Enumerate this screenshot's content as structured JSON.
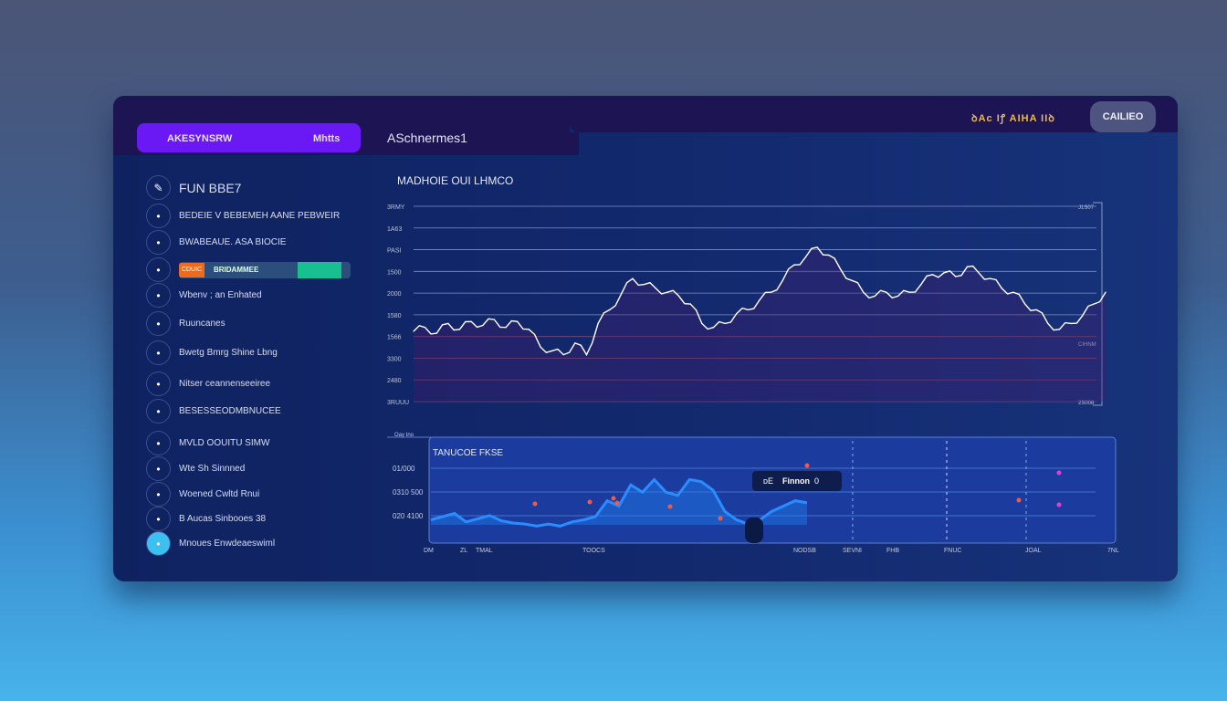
{
  "header": {
    "active_tab": {
      "label": "AKESYNSRW",
      "badge": "Mhtts"
    },
    "tab2": "ASchnermes1",
    "status": "ꝺAc Iꝭ AIHA IIꝺ",
    "button": "CAILIEO"
  },
  "sidebar": {
    "title": "FUN BBE7",
    "items": [
      {
        "label": "BEDEIE V BEBEMEH AANE PEBWEIR",
        "icon": "brush-icon"
      },
      {
        "label": "BWABEAUE. ASA BIOCIE",
        "icon": "drop-icon"
      },
      {
        "label": "BRIDAMMEE",
        "icon": "pin-icon",
        "progress_badge": "CDUIC",
        "progress": 0.95
      },
      {
        "label": "Wbenv ; an Enhated",
        "icon": "coin-icon"
      },
      {
        "label": "Ruuncanes",
        "icon": "globe-icon"
      },
      {
        "label": "Bwetg Bmrg Shine Lbng",
        "icon": "rocket-icon"
      },
      {
        "label": "Nitser ceannenseeiree",
        "icon": "gauge-icon"
      },
      {
        "label": "BESESSEODMBNUCEE",
        "icon": "plane-icon"
      },
      {
        "label": "MVLD OOUITU SIMW",
        "icon": "anchor-icon"
      },
      {
        "label": "Wte Sh Sinnned",
        "icon": "link-icon"
      },
      {
        "label": "Woened Cwltd Rnui",
        "icon": "planet-icon"
      },
      {
        "label": "B Aucas Sinbooes 38",
        "icon": "euro-icon"
      },
      {
        "label": "Mnoues Enwdeaeswiml",
        "icon": "shield-icon"
      }
    ]
  },
  "colors": {
    "accent": "#6a18f4",
    "line": "#ffffff",
    "area": "#1e7cf0",
    "progress": "#19c08f",
    "badge": "#f06a1c"
  },
  "chart_data": [
    {
      "type": "line",
      "title": "MADHOIE OUI LHMCO",
      "y_ticks": [
        "3RMY",
        "1A63",
        "PASI",
        "1500",
        "2000",
        "1580",
        "1566",
        "3300",
        "2480",
        "3RUUU"
      ],
      "right_ticks": [
        "J1S07",
        "CIHNM",
        "2S008"
      ],
      "ylim": [
        0,
        100
      ],
      "grid": true,
      "series": [
        {
          "values": [
            36,
            38,
            35,
            40,
            37,
            41,
            39,
            42,
            38,
            41,
            37,
            28,
            26,
            24,
            30,
            24,
            40,
            47,
            55,
            63,
            60,
            58,
            56,
            54,
            50,
            40,
            38,
            40,
            45,
            47,
            52,
            56,
            62,
            70,
            74,
            79,
            75,
            68,
            62,
            56,
            54,
            56,
            54,
            56,
            60,
            65,
            66,
            64,
            69,
            66,
            63,
            58,
            56,
            50,
            47,
            40,
            37,
            40,
            44,
            50,
            56
          ]
        }
      ]
    },
    {
      "type": "area",
      "title": "TANUCOE FKSE",
      "y_ticks": [
        "Oay tno",
        "01/000",
        "0310 500",
        "020 4100"
      ],
      "x_ticks": [
        "DM",
        "ZL",
        "TMAL",
        "TOOCS",
        "NODSB",
        "SEVNI",
        "FHB",
        "FNUC",
        "JOAL",
        "7NL"
      ],
      "ylim": [
        0,
        100
      ],
      "grid": true,
      "series": [
        {
          "values": [
            22,
            25,
            28,
            20,
            23,
            26,
            21,
            19,
            18,
            16,
            18,
            16,
            20,
            22,
            25,
            40,
            35,
            55,
            48,
            60,
            48,
            45,
            60,
            58,
            50,
            30,
            22,
            18,
            22,
            30,
            35,
            40,
            38
          ]
        }
      ],
      "tooltip": {
        "label": "Finnon",
        "prefix": "ᴅE",
        "value": "0"
      }
    }
  ]
}
